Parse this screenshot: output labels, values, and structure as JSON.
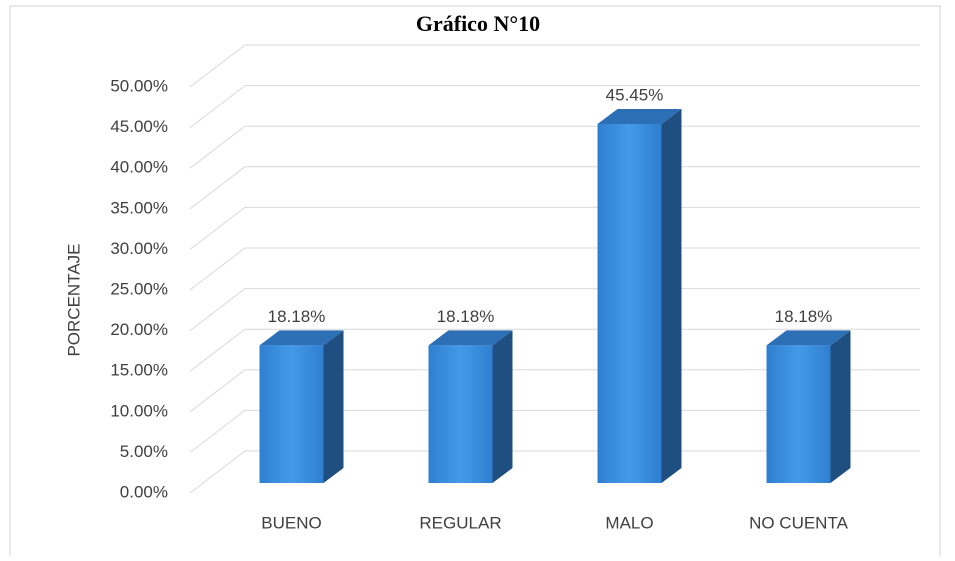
{
  "chart_data": {
    "type": "bar3d",
    "title": "Gráfico N°10",
    "y_label": "PORCENTAJE",
    "categories": [
      "BUENO",
      "REGULAR",
      "MALO",
      "NO CUENTA"
    ],
    "values": [
      18.18,
      18.18,
      45.45,
      18.18
    ],
    "value_labels": [
      "18.18%",
      "18.18%",
      "45.45%",
      "18.18%"
    ],
    "color": "#3a8ee0",
    "ylim": [
      0,
      50
    ],
    "yticks": [
      {
        "value": 0,
        "label": "0.00%"
      },
      {
        "value": 5,
        "label": "5.00%"
      },
      {
        "value": 10,
        "label": "10.00%"
      },
      {
        "value": 15,
        "label": "15.00%"
      },
      {
        "value": 20,
        "label": "20.00%"
      },
      {
        "value": 25,
        "label": "25.00%"
      },
      {
        "value": 30,
        "label": "30.00%"
      },
      {
        "value": 35,
        "label": "35.00%"
      },
      {
        "value": 40,
        "label": "40.00%"
      },
      {
        "value": 45,
        "label": "45.00%"
      },
      {
        "value": 50,
        "label": "50.00%"
      }
    ],
    "grid": true
  }
}
